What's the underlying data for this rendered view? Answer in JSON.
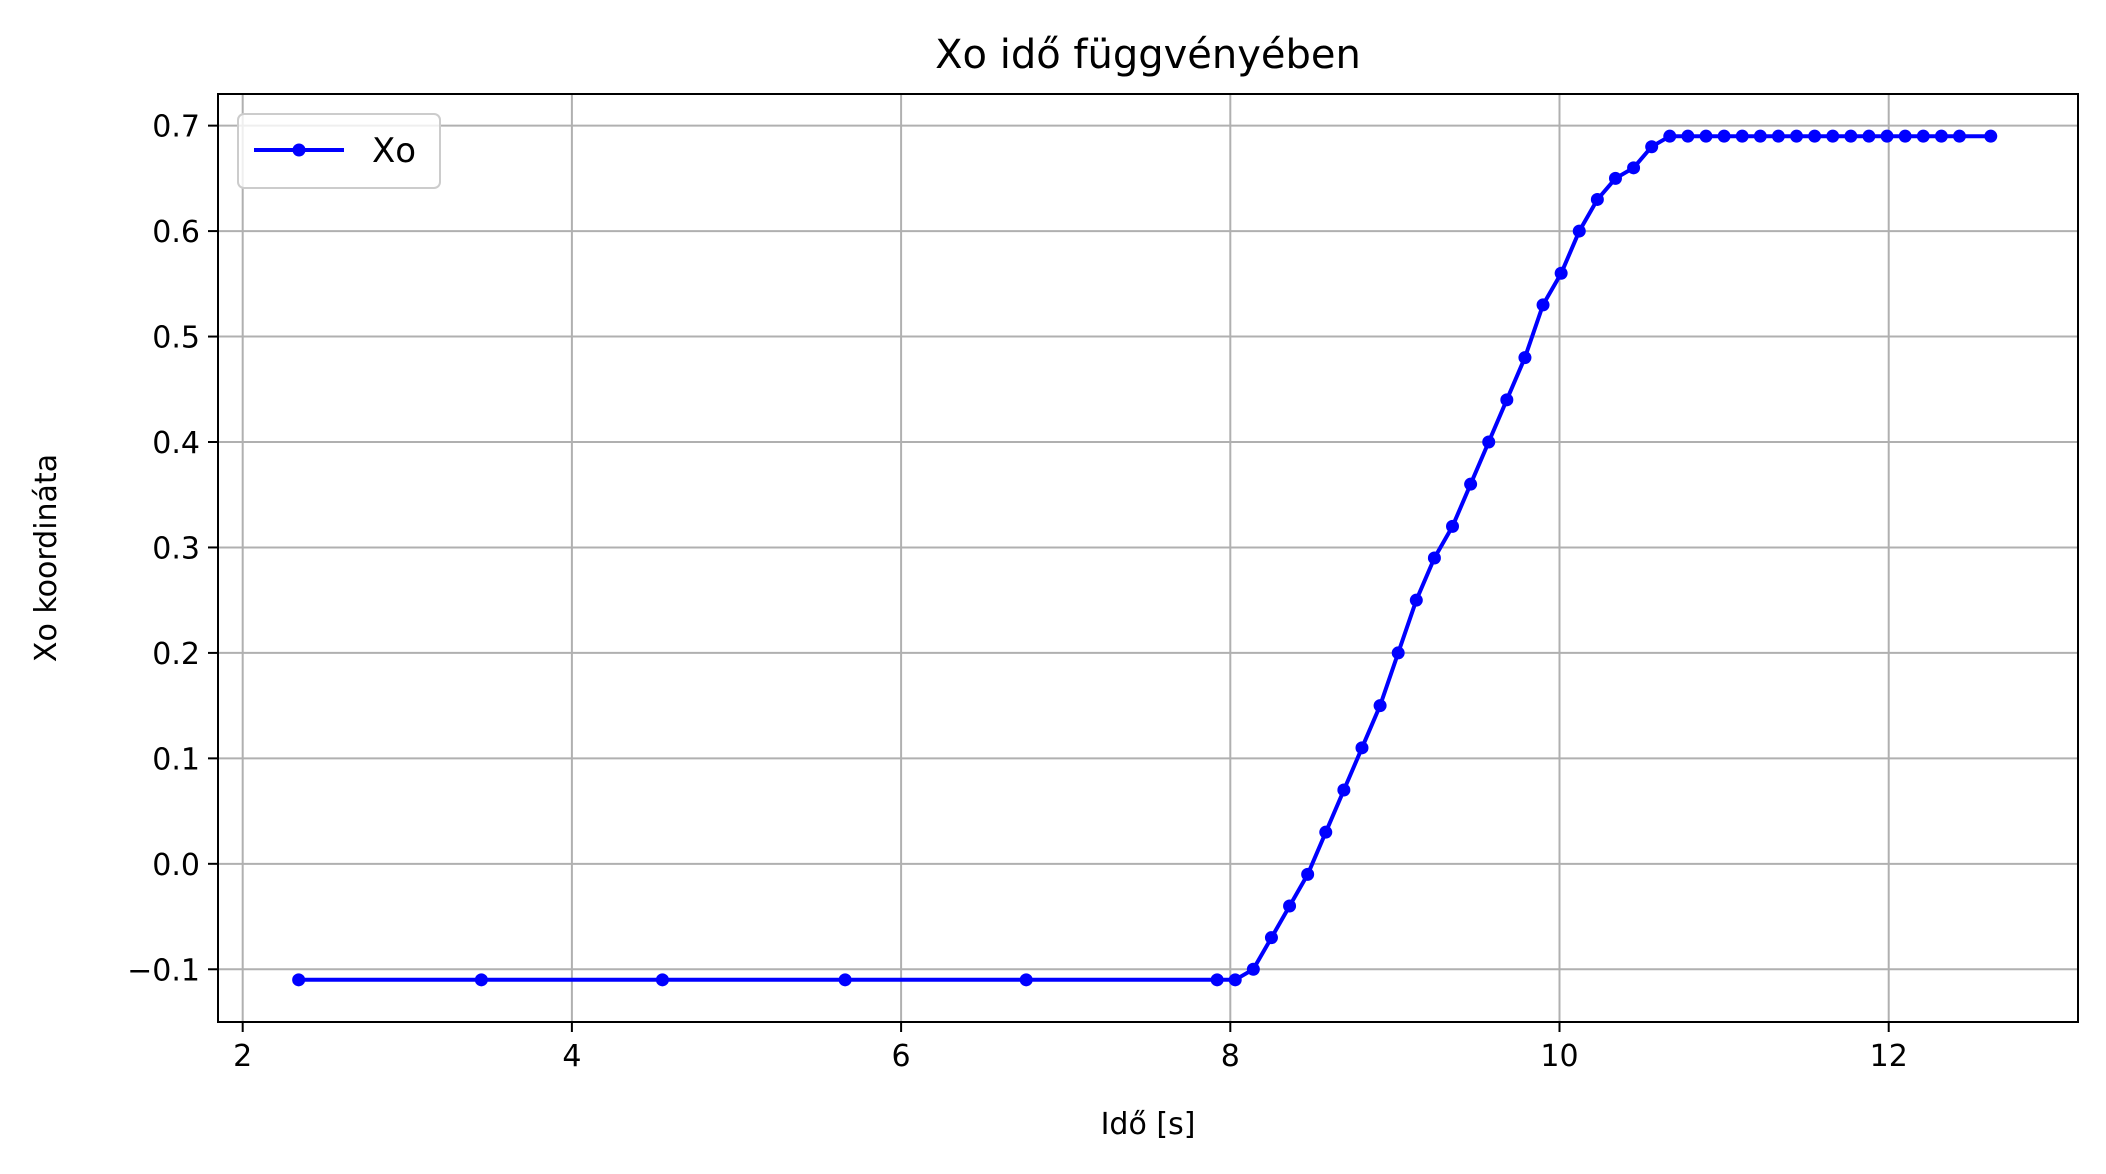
{
  "chart_data": {
    "type": "line",
    "title": "Xo idő függvényében",
    "xlabel": "Idő [s]",
    "ylabel": "Xo koordináta",
    "xlim": [
      1.85,
      13.15
    ],
    "ylim": [
      -0.15,
      0.73
    ],
    "xticks": [
      2,
      4,
      6,
      8,
      10,
      12
    ],
    "xtick_labels": [
      "2",
      "4",
      "6",
      "8",
      "10",
      "12"
    ],
    "yticks": [
      -0.1,
      0.0,
      0.1,
      0.2,
      0.3,
      0.4,
      0.5,
      0.6,
      0.7
    ],
    "ytick_labels": [
      "−0.1",
      "0.0",
      "0.1",
      "0.2",
      "0.3",
      "0.4",
      "0.5",
      "0.6",
      "0.7"
    ],
    "grid": true,
    "legend_position": "top-left",
    "series": [
      {
        "name": "Xo",
        "color": "#0000ff",
        "marker": "circle",
        "x": [
          2.34,
          3.45,
          4.55,
          5.66,
          6.76,
          7.92,
          8.03,
          8.14,
          8.25,
          8.36,
          8.47,
          8.58,
          8.69,
          8.8,
          8.91,
          9.02,
          9.13,
          9.24,
          9.35,
          9.46,
          9.57,
          9.68,
          9.79,
          9.9,
          10.01,
          10.12,
          10.23,
          10.34,
          10.45,
          10.56,
          10.67,
          10.78,
          10.89,
          11.0,
          11.11,
          11.22,
          11.33,
          11.44,
          11.55,
          11.66,
          11.77,
          11.88,
          11.99,
          12.1,
          12.21,
          12.32,
          12.43,
          12.62
        ],
        "y": [
          -0.11,
          -0.11,
          -0.11,
          -0.11,
          -0.11,
          -0.11,
          -0.11,
          -0.1,
          -0.07,
          -0.04,
          -0.01,
          0.03,
          0.07,
          0.11,
          0.15,
          0.2,
          0.25,
          0.29,
          0.32,
          0.36,
          0.4,
          0.44,
          0.48,
          0.53,
          0.56,
          0.6,
          0.63,
          0.65,
          0.66,
          0.68,
          0.69,
          0.69,
          0.69,
          0.69,
          0.69,
          0.69,
          0.69,
          0.69,
          0.69,
          0.69,
          0.69,
          0.69,
          0.69,
          0.69,
          0.69,
          0.69,
          0.69,
          0.69
        ]
      }
    ]
  }
}
